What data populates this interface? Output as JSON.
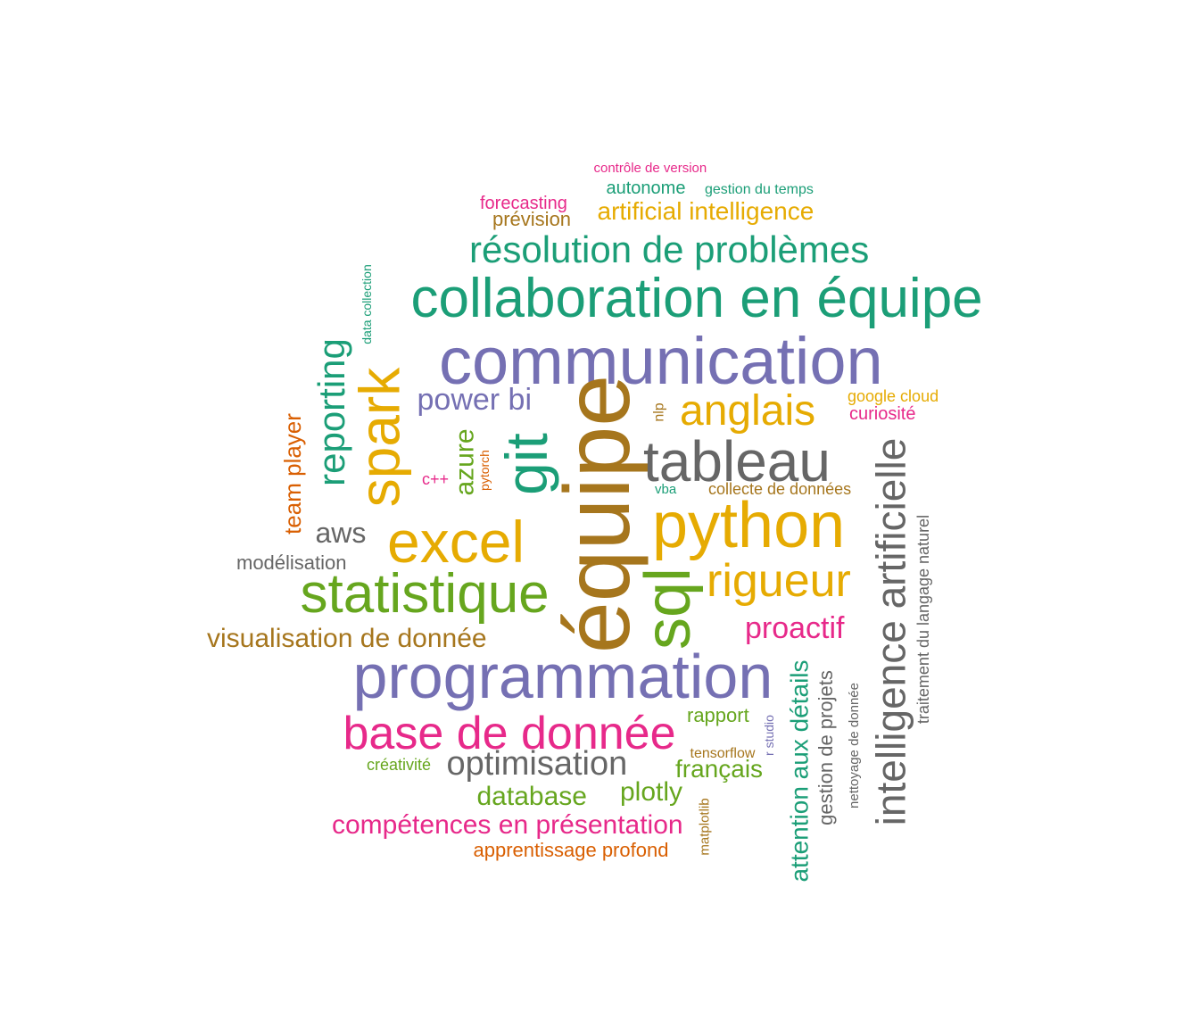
{
  "palette": {
    "green": "#1b9e77",
    "purple": "#7570b3",
    "brown": "#a6761d",
    "gold": "#e6ab02",
    "lime": "#66a61e",
    "pink": "#e7298a",
    "orange": "#d95f02",
    "grey": "#666666"
  },
  "words": [
    {
      "text": "contrôle de version",
      "color": "#e7298a",
      "rotated": false
    },
    {
      "text": "autonome",
      "color": "#1b9e77",
      "rotated": false
    },
    {
      "text": "gestion du temps",
      "color": "#1b9e77",
      "rotated": false
    },
    {
      "text": "forecasting",
      "color": "#e7298a",
      "rotated": false
    },
    {
      "text": "prévision",
      "color": "#a6761d",
      "rotated": false
    },
    {
      "text": "artificial intelligence",
      "color": "#e6ab02",
      "rotated": false
    },
    {
      "text": "résolution de problèmes",
      "color": "#1b9e77",
      "rotated": false
    },
    {
      "text": "collaboration en équipe",
      "color": "#1b9e77",
      "rotated": false
    },
    {
      "text": "data collection",
      "color": "#1b9e77",
      "rotated": true
    },
    {
      "text": "communication",
      "color": "#7570b3",
      "rotated": false
    },
    {
      "text": "reporting",
      "color": "#1b9e77",
      "rotated": true
    },
    {
      "text": "spark",
      "color": "#e6ab02",
      "rotated": true
    },
    {
      "text": "power bi",
      "color": "#7570b3",
      "rotated": false
    },
    {
      "text": "nlp",
      "color": "#a6761d",
      "rotated": true
    },
    {
      "text": "anglais",
      "color": "#e6ab02",
      "rotated": false
    },
    {
      "text": "google cloud",
      "color": "#e6ab02",
      "rotated": false
    },
    {
      "text": "curiosité",
      "color": "#e7298a",
      "rotated": false
    },
    {
      "text": "team player",
      "color": "#d95f02",
      "rotated": true
    },
    {
      "text": "azure",
      "color": "#66a61e",
      "rotated": true
    },
    {
      "text": "pytorch",
      "color": "#d95f02",
      "rotated": true
    },
    {
      "text": "c++",
      "color": "#e7298a",
      "rotated": false
    },
    {
      "text": "git",
      "color": "#1b9e77",
      "rotated": true
    },
    {
      "text": "équipe",
      "color": "#a6761d",
      "rotated": true
    },
    {
      "text": "tableau",
      "color": "#666666",
      "rotated": false
    },
    {
      "text": "vba",
      "color": "#1b9e77",
      "rotated": false
    },
    {
      "text": "collecte de données",
      "color": "#a6761d",
      "rotated": false
    },
    {
      "text": "intelligence artificielle",
      "color": "#666666",
      "rotated": true
    },
    {
      "text": "traitement du langage naturel",
      "color": "#666666",
      "rotated": true
    },
    {
      "text": "aws",
      "color": "#666666",
      "rotated": false
    },
    {
      "text": "excel",
      "color": "#e6ab02",
      "rotated": false
    },
    {
      "text": "python",
      "color": "#e6ab02",
      "rotated": false
    },
    {
      "text": "modélisation",
      "color": "#666666",
      "rotated": false
    },
    {
      "text": "statistique",
      "color": "#66a61e",
      "rotated": false
    },
    {
      "text": "sql",
      "color": "#66a61e",
      "rotated": true
    },
    {
      "text": "rigueur",
      "color": "#e6ab02",
      "rotated": false
    },
    {
      "text": "proactif",
      "color": "#e7298a",
      "rotated": false
    },
    {
      "text": "visualisation de donnée",
      "color": "#a6761d",
      "rotated": false
    },
    {
      "text": "programmation",
      "color": "#7570b3",
      "rotated": false
    },
    {
      "text": "attention aux détails",
      "color": "#1b9e77",
      "rotated": true
    },
    {
      "text": "gestion de projets",
      "color": "#666666",
      "rotated": true
    },
    {
      "text": "nettoyage de donnée",
      "color": "#666666",
      "rotated": true
    },
    {
      "text": "rapport",
      "color": "#66a61e",
      "rotated": false
    },
    {
      "text": "r studio",
      "color": "#7570b3",
      "rotated": true
    },
    {
      "text": "base de donnée",
      "color": "#e7298a",
      "rotated": false
    },
    {
      "text": "tensorflow",
      "color": "#a6761d",
      "rotated": false
    },
    {
      "text": "créativité",
      "color": "#66a61e",
      "rotated": false
    },
    {
      "text": "optimisation",
      "color": "#666666",
      "rotated": false
    },
    {
      "text": "français",
      "color": "#66a61e",
      "rotated": false
    },
    {
      "text": "database",
      "color": "#66a61e",
      "rotated": false
    },
    {
      "text": "plotly",
      "color": "#66a61e",
      "rotated": false
    },
    {
      "text": "matplotlib",
      "color": "#a6761d",
      "rotated": true
    },
    {
      "text": "compétences en présentation",
      "color": "#e7298a",
      "rotated": false
    },
    {
      "text": "apprentissage profond",
      "color": "#d95f02",
      "rotated": false
    }
  ]
}
